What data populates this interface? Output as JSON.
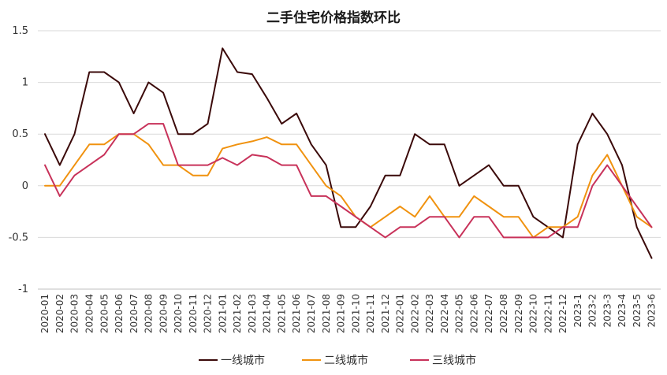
{
  "chart_data": {
    "type": "line",
    "title": "二手住宅价格指数环比",
    "xlabel": "",
    "ylabel": "",
    "ylim": [
      -1,
      1.5
    ],
    "yticks": [
      "1.5",
      "1",
      "0.5",
      "0",
      "-0.5",
      "-1"
    ],
    "grid": true,
    "legend_position": "bottom",
    "categories": [
      "2020-01",
      "2020-02",
      "2020-03",
      "2020-04",
      "2020-05",
      "2020-06",
      "2020-07",
      "2020-08",
      "2020-09",
      "2020-10",
      "2020-11",
      "2020-12",
      "2021-01",
      "2021-02",
      "2021-03",
      "2021-04",
      "2021-05",
      "2021-06",
      "2021-07",
      "2021-08",
      "2021-09",
      "2021-10",
      "2021-11",
      "2021-12",
      "2022-01",
      "2022-02",
      "2022-03",
      "2022-04",
      "2022-05",
      "2022-06",
      "2022-07",
      "2022-08",
      "2022-09",
      "2022-10",
      "2022-11",
      "2022-12",
      "2023-01",
      "2023-02",
      "2023-03",
      "2023-04",
      "2023-05",
      "2023-06"
    ],
    "xtick_labels": [
      "2020-01",
      "2020-02",
      "2020-03",
      "2020-04",
      "2020-05",
      "2020-06",
      "2020-07",
      "2020-08",
      "2020-09",
      "2020-10",
      "2020-11",
      "2020-12",
      "2021-01",
      "2021-02",
      "2021-03",
      "2021-04",
      "2021-05",
      "2021-06",
      "2021-07",
      "2021-08",
      "2021-09",
      "2021-10",
      "2021-11",
      "2021-12",
      "2022-01",
      "2022-02",
      "2022-03",
      "2022-04",
      "2022-05",
      "2022-06",
      "2022-07",
      "2022-08",
      "2022-09",
      "2022-10",
      "2022-11",
      "2022-12",
      "2023-1",
      "2023-2",
      "2023-3",
      "2023-4",
      "2023-5",
      "2023-6"
    ],
    "xtick_label_indices": [
      0,
      1,
      2,
      3,
      4,
      5,
      6,
      7,
      8,
      9,
      10,
      11,
      12,
      13,
      14,
      15,
      16,
      17,
      18,
      19,
      20,
      21,
      22,
      23,
      24,
      25,
      26,
      27,
      28,
      29,
      30,
      31,
      32,
      33,
      34,
      35,
      36,
      37,
      38,
      39,
      40,
      41
    ],
    "series": [
      {
        "name": "一线城市",
        "color": "#3b0a0a",
        "values": [
          0.5,
          0.2,
          0.5,
          1.1,
          1.1,
          1.0,
          0.7,
          1.0,
          0.9,
          0.5,
          0.5,
          0.6,
          1.33,
          1.1,
          1.08,
          0.85,
          0.6,
          0.7,
          0.4,
          0.2,
          -0.4,
          -0.4,
          -0.2,
          0.1,
          0.1,
          0.5,
          0.4,
          0.4,
          0.0,
          0.1,
          0.2,
          0.0,
          0.0,
          -0.3,
          -0.4,
          -0.5,
          0.4,
          0.7,
          0.5,
          0.2,
          -0.4,
          -0.7
        ]
      },
      {
        "name": "二线城市",
        "color": "#f0920f",
        "values": [
          0.0,
          0.0,
          0.2,
          0.4,
          0.4,
          0.5,
          0.5,
          0.4,
          0.2,
          0.2,
          0.1,
          0.1,
          0.36,
          0.4,
          0.43,
          0.47,
          0.4,
          0.4,
          0.2,
          0.0,
          -0.1,
          -0.3,
          -0.4,
          -0.3,
          -0.2,
          -0.3,
          -0.1,
          -0.3,
          -0.3,
          -0.1,
          -0.2,
          -0.3,
          -0.3,
          -0.5,
          -0.4,
          -0.4,
          -0.3,
          0.1,
          0.3,
          0.0,
          -0.3,
          -0.4
        ]
      },
      {
        "name": "三线城市",
        "color": "#c8325a",
        "values": [
          0.2,
          -0.1,
          0.1,
          0.2,
          0.3,
          0.5,
          0.5,
          0.6,
          0.6,
          0.2,
          0.2,
          0.2,
          0.27,
          0.2,
          0.3,
          0.28,
          0.2,
          0.2,
          -0.1,
          -0.1,
          -0.2,
          -0.3,
          -0.4,
          -0.5,
          -0.4,
          -0.4,
          -0.3,
          -0.3,
          -0.5,
          -0.3,
          -0.3,
          -0.5,
          -0.5,
          -0.5,
          -0.5,
          -0.4,
          -0.4,
          0.0,
          0.2,
          0.0,
          -0.2,
          -0.4
        ]
      }
    ]
  }
}
